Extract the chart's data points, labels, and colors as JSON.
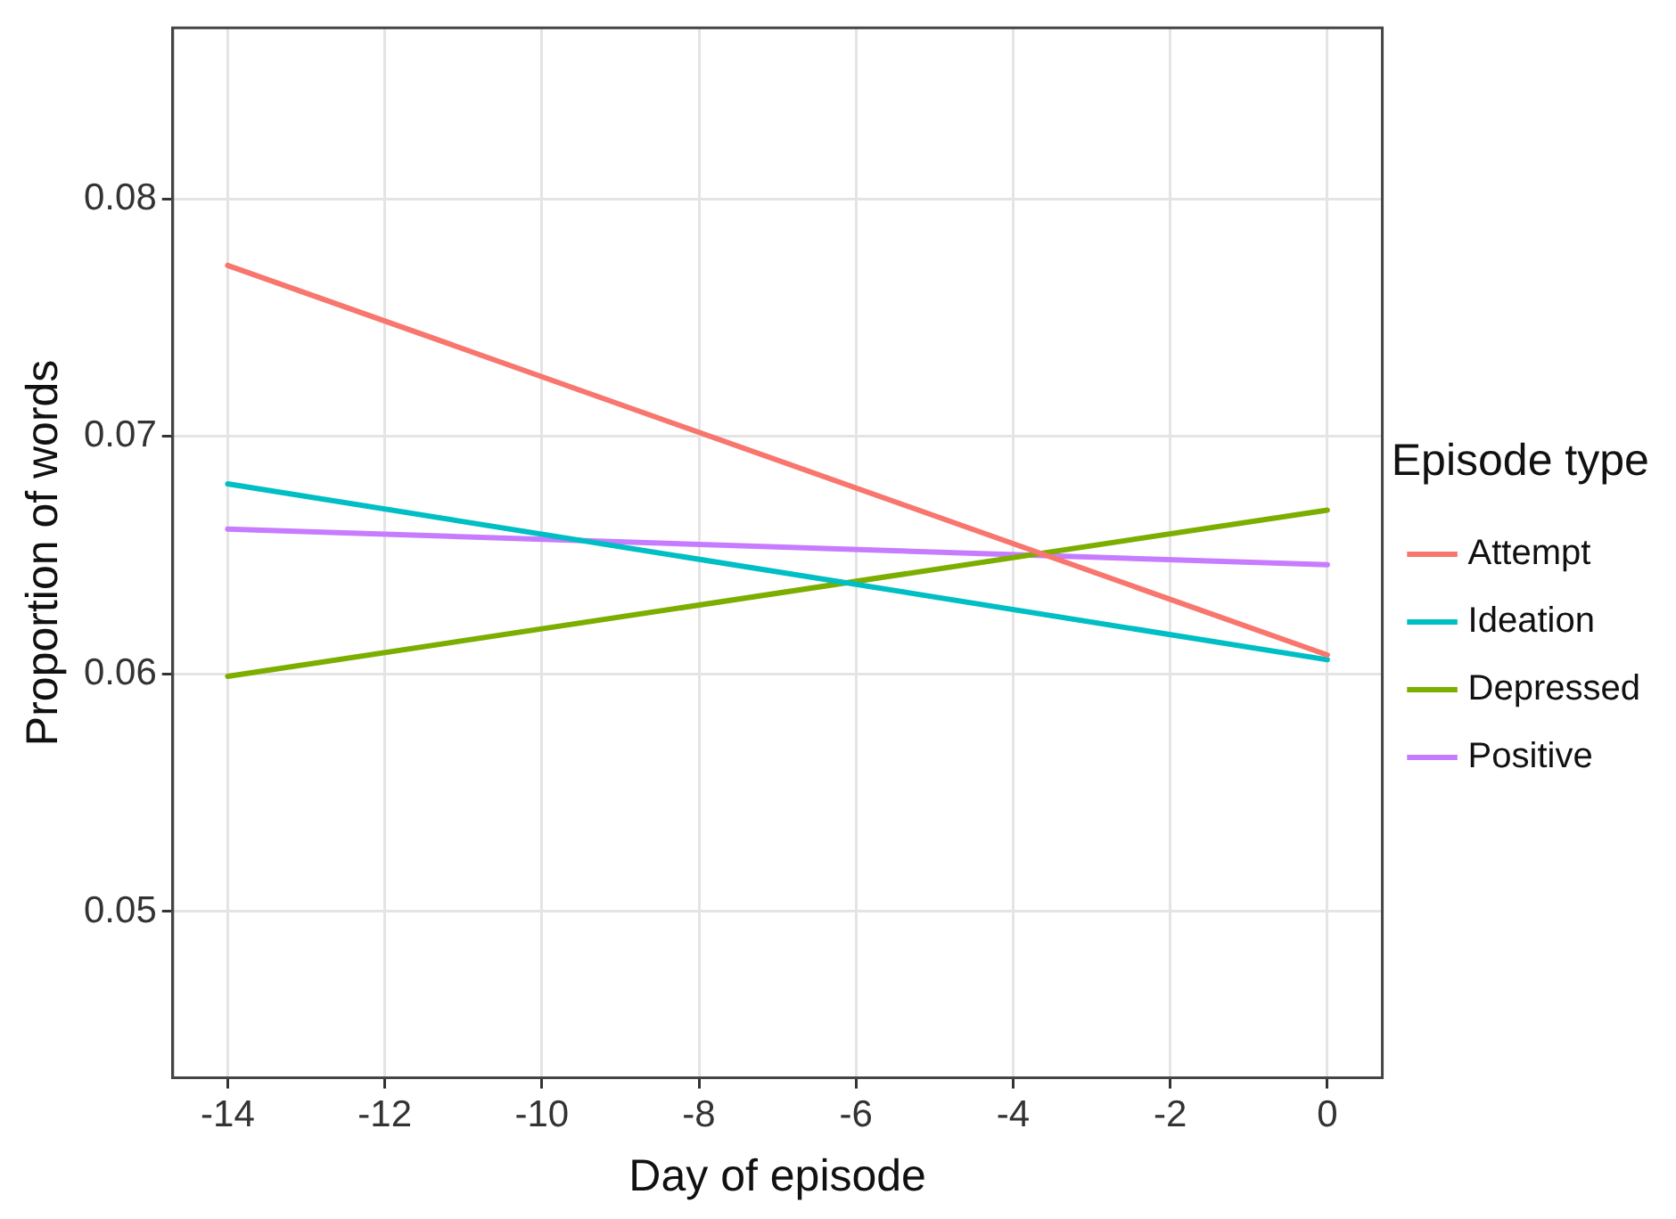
{
  "chart_data": {
    "type": "line",
    "xlabel": "Day of episode",
    "ylabel": "Proportion of words",
    "legend_title": "Episode type",
    "x": [
      -14,
      0
    ],
    "xlim": [
      -14.7,
      0.7
    ],
    "xticks": [
      -14,
      -12,
      -10,
      -8,
      -6,
      -4,
      -2,
      0
    ],
    "ylim": [
      0.043,
      0.0872
    ],
    "yticks": [
      0.05,
      0.06,
      0.07,
      0.08
    ],
    "grid": true,
    "legend": "right",
    "marker": "none",
    "line_style": "solid",
    "series": [
      {
        "name": "Attempt",
        "color": "#f8766d",
        "values": [
          0.0772,
          0.0608
        ]
      },
      {
        "name": "Ideation",
        "color": "#00bfc4",
        "values": [
          0.068,
          0.0606
        ]
      },
      {
        "name": "Depressed",
        "color": "#7cae00",
        "values": [
          0.0599,
          0.0669
        ]
      },
      {
        "name": "Positive",
        "color": "#c77cff",
        "values": [
          0.0661,
          0.0646
        ]
      }
    ]
  }
}
